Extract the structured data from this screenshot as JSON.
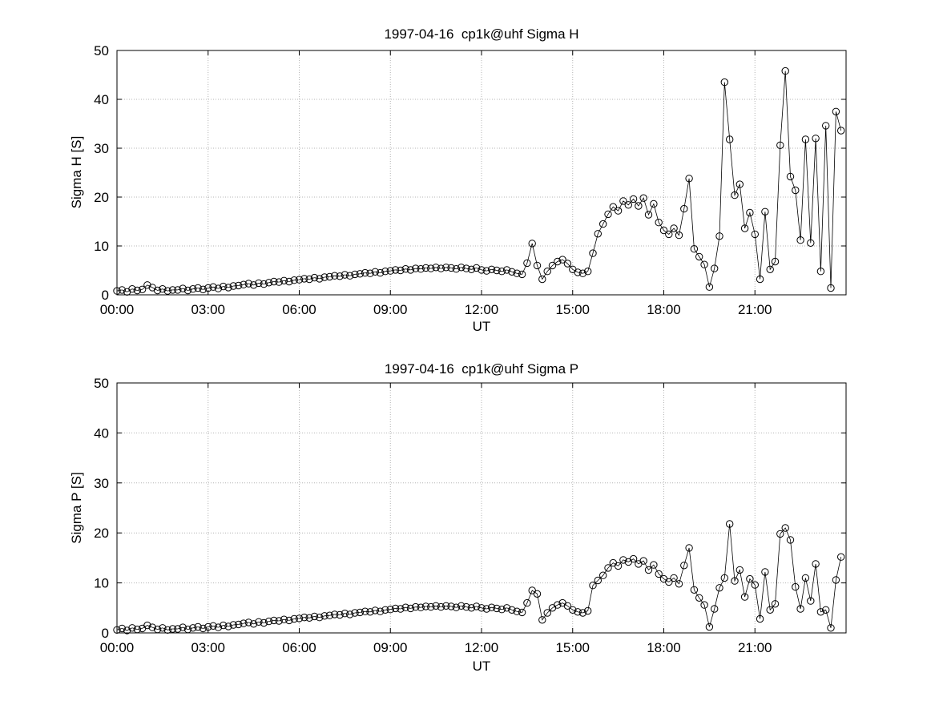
{
  "page": {
    "background": "#ffffff",
    "line_color": "#000000",
    "grid_color": "#b4b4b4"
  },
  "chart_data": [
    {
      "type": "line",
      "title": "1997-04-16  cp1k@uhf Sigma H",
      "xlabel": "UT",
      "ylabel": "Sigma H [S]",
      "xlim_hours": [
        0,
        24
      ],
      "ylim": [
        0,
        50
      ],
      "yticks": [
        0,
        10,
        20,
        30,
        40,
        50
      ],
      "xtick_hours": [
        0,
        3,
        6,
        9,
        12,
        15,
        18,
        21
      ],
      "xtick_labels": [
        "00:00",
        "03:00",
        "06:00",
        "09:00",
        "12:00",
        "15:00",
        "18:00",
        "21:00"
      ],
      "grid": true,
      "legend": "none",
      "marker": "open-circle",
      "x_start_hours": 0,
      "x_step_hours": 0.1666667,
      "values": [
        0.8,
        1.0,
        0.6,
        1.2,
        0.9,
        1.1,
        2.0,
        1.5,
        0.9,
        1.2,
        0.8,
        1.0,
        1.0,
        1.3,
        0.9,
        1.2,
        1.4,
        1.1,
        1.4,
        1.6,
        1.3,
        1.7,
        1.5,
        1.8,
        1.9,
        2.1,
        2.3,
        2.0,
        2.4,
        2.2,
        2.5,
        2.7,
        2.6,
        2.9,
        2.7,
        3.0,
        3.1,
        3.3,
        3.2,
        3.5,
        3.3,
        3.6,
        3.7,
        3.9,
        3.8,
        4.1,
        3.9,
        4.2,
        4.3,
        4.5,
        4.4,
        4.7,
        4.5,
        4.8,
        4.9,
        5.1,
        5.0,
        5.3,
        5.1,
        5.4,
        5.3,
        5.5,
        5.4,
        5.6,
        5.4,
        5.6,
        5.5,
        5.3,
        5.6,
        5.4,
        5.2,
        5.5,
        5.1,
        4.9,
        5.2,
        5.0,
        4.8,
        5.1,
        4.7,
        4.4,
        4.2,
        6.5,
        10.5,
        6.0,
        3.2,
        4.8,
        6.0,
        6.8,
        7.2,
        6.4,
        5.2,
        4.6,
        4.4,
        4.8,
        8.5,
        12.5,
        14.5,
        16.5,
        18.0,
        17.2,
        19.2,
        18.4,
        19.6,
        18.2,
        19.8,
        16.4,
        18.6,
        14.8,
        13.2,
        12.4,
        13.6,
        12.2,
        17.6,
        23.8,
        9.4,
        7.8,
        6.2,
        1.6,
        5.4,
        12.0,
        43.5,
        31.8,
        20.4,
        22.6,
        13.6,
        16.8,
        12.4,
        3.2,
        17.0,
        5.2,
        6.8,
        30.6,
        45.8,
        24.2,
        21.4,
        11.2,
        31.8,
        10.6,
        32.0,
        4.8,
        34.6,
        1.4,
        37.5,
        33.6
      ]
    },
    {
      "type": "line",
      "title": "1997-04-16  cp1k@uhf Sigma P",
      "xlabel": "UT",
      "ylabel": "Sigma P [S]",
      "xlim_hours": [
        0,
        24
      ],
      "ylim": [
        0,
        50
      ],
      "yticks": [
        0,
        10,
        20,
        30,
        40,
        50
      ],
      "xtick_hours": [
        0,
        3,
        6,
        9,
        12,
        15,
        18,
        21
      ],
      "xtick_labels": [
        "00:00",
        "03:00",
        "06:00",
        "09:00",
        "12:00",
        "15:00",
        "18:00",
        "21:00"
      ],
      "grid": true,
      "legend": "none",
      "marker": "open-circle",
      "x_start_hours": 0,
      "x_step_hours": 0.1666667,
      "values": [
        0.6,
        0.9,
        0.5,
        1.0,
        0.7,
        0.9,
        1.5,
        1.1,
        0.7,
        1.0,
        0.6,
        0.8,
        0.8,
        1.1,
        0.7,
        1.0,
        1.2,
        0.9,
        1.2,
        1.4,
        1.1,
        1.5,
        1.3,
        1.6,
        1.7,
        1.9,
        2.1,
        1.8,
        2.2,
        2.0,
        2.3,
        2.5,
        2.4,
        2.7,
        2.5,
        2.8,
        2.9,
        3.1,
        3.0,
        3.3,
        3.1,
        3.4,
        3.5,
        3.7,
        3.6,
        3.9,
        3.7,
        4.0,
        4.1,
        4.3,
        4.2,
        4.5,
        4.3,
        4.6,
        4.7,
        4.9,
        4.8,
        5.1,
        4.9,
        5.2,
        5.1,
        5.3,
        5.2,
        5.4,
        5.2,
        5.4,
        5.3,
        5.1,
        5.4,
        5.2,
        5.0,
        5.3,
        5.0,
        4.8,
        5.1,
        4.9,
        4.7,
        5.0,
        4.6,
        4.3,
        4.1,
        6.0,
        8.5,
        7.8,
        2.6,
        4.0,
        5.0,
        5.6,
        6.0,
        5.4,
        4.6,
        4.2,
        4.0,
        4.4,
        9.5,
        10.5,
        11.5,
        13.0,
        14.0,
        13.4,
        14.6,
        14.2,
        14.8,
        13.8,
        14.4,
        12.6,
        13.6,
        11.8,
        10.8,
        10.2,
        11.0,
        9.8,
        13.5,
        17.0,
        8.6,
        7.0,
        5.6,
        1.2,
        4.8,
        9.0,
        11.0,
        21.8,
        10.4,
        12.6,
        7.2,
        10.8,
        9.6,
        2.8,
        12.2,
        4.6,
        5.8,
        19.8,
        21.0,
        18.6,
        9.2,
        4.8,
        11.0,
        6.4,
        13.8,
        4.2,
        4.6,
        1.0,
        10.6,
        15.2
      ]
    }
  ]
}
